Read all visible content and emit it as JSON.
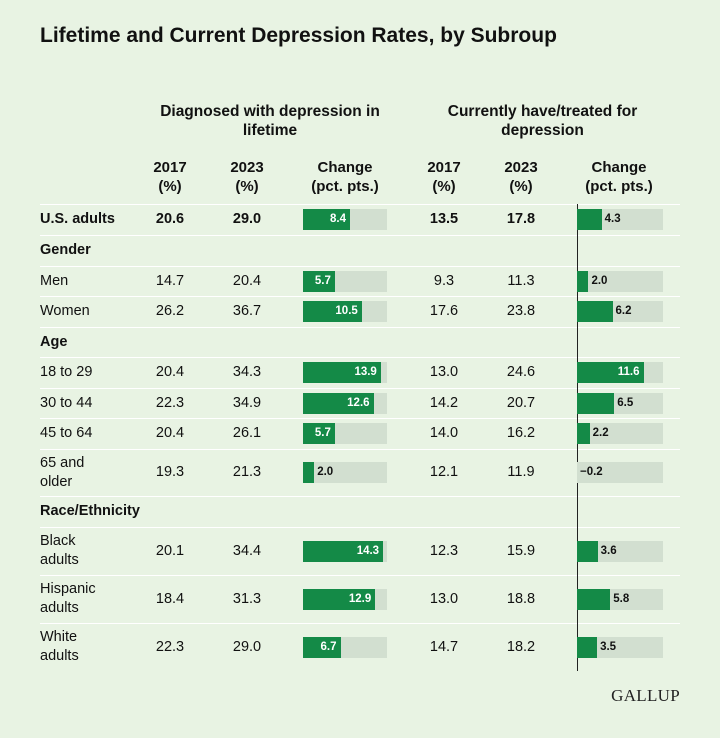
{
  "chart_data": {
    "type": "table",
    "title": "Lifetime and Current Depression Rates, by Subroup",
    "groups": [
      {
        "label": "Diagnosed with depression in lifetime",
        "columns": [
          "2017\n(%)",
          "2023\n(%)",
          "Change\n(pct. pts.)"
        ]
      },
      {
        "label": "Currently have/treated for depression",
        "columns": [
          "2017\n(%)",
          "2023\n(%)",
          "Change\n(pct. pts.)"
        ]
      }
    ],
    "rows": [
      {
        "type": "data",
        "label": "U.S. adults",
        "bold": true,
        "l2017": "20.6",
        "l2023": "29.0",
        "lchg": 8.4,
        "lchg_label": "8.4",
        "c2017": "13.5",
        "c2023": "17.8",
        "cchg": 4.3,
        "cchg_label": "4.3"
      },
      {
        "type": "section",
        "label": "Gender"
      },
      {
        "type": "data",
        "label": "Men",
        "l2017": "14.7",
        "l2023": "20.4",
        "lchg": 5.7,
        "lchg_label": "5.7",
        "c2017": "9.3",
        "c2023": "11.3",
        "cchg": 2.0,
        "cchg_label": "2.0"
      },
      {
        "type": "data",
        "label": "Women",
        "l2017": "26.2",
        "l2023": "36.7",
        "lchg": 10.5,
        "lchg_label": "10.5",
        "c2017": "17.6",
        "c2023": "23.8",
        "cchg": 6.2,
        "cchg_label": "6.2"
      },
      {
        "type": "section",
        "label": "Age"
      },
      {
        "type": "data",
        "label": "18 to 29",
        "l2017": "20.4",
        "l2023": "34.3",
        "lchg": 13.9,
        "lchg_label": "13.9",
        "c2017": "13.0",
        "c2023": "24.6",
        "cchg": 11.6,
        "cchg_label": "11.6"
      },
      {
        "type": "data",
        "label": "30 to 44",
        "l2017": "22.3",
        "l2023": "34.9",
        "lchg": 12.6,
        "lchg_label": "12.6",
        "c2017": "14.2",
        "c2023": "20.7",
        "cchg": 6.5,
        "cchg_label": "6.5"
      },
      {
        "type": "data",
        "label": "45 to 64",
        "l2017": "20.4",
        "l2023": "26.1",
        "lchg": 5.7,
        "lchg_label": "5.7",
        "c2017": "14.0",
        "c2023": "16.2",
        "cchg": 2.2,
        "cchg_label": "2.2"
      },
      {
        "type": "data",
        "label": "65 and\nolder",
        "l2017": "19.3",
        "l2023": "21.3",
        "lchg": 2.0,
        "lchg_label": "2.0",
        "c2017": "12.1",
        "c2023": "11.9",
        "cchg": -0.2,
        "cchg_label": "−0.2"
      },
      {
        "type": "section",
        "label": "Race/Ethnicity"
      },
      {
        "type": "data",
        "label": "Black\nadults",
        "l2017": "20.1",
        "l2023": "34.4",
        "lchg": 14.3,
        "lchg_label": "14.3",
        "c2017": "12.3",
        "c2023": "15.9",
        "cchg": 3.6,
        "cchg_label": "3.6"
      },
      {
        "type": "data",
        "label": "Hispanic\nadults",
        "l2017": "18.4",
        "l2023": "31.3",
        "lchg": 12.9,
        "lchg_label": "12.9",
        "c2017": "13.0",
        "c2023": "18.8",
        "cchg": 5.8,
        "cchg_label": "5.8"
      },
      {
        "type": "data",
        "label": "White\nadults",
        "l2017": "22.3",
        "l2023": "29.0",
        "lchg": 6.7,
        "lchg_label": "6.7",
        "c2017": "14.7",
        "c2023": "18.2",
        "cchg": 3.5,
        "cchg_label": "3.5"
      }
    ],
    "change_scale_max": 15
  },
  "brand": {
    "logo": "GALLUP"
  },
  "colors": {
    "background": "#e8f3e3",
    "bar": "#148a47",
    "track": "#d2dfd0"
  }
}
